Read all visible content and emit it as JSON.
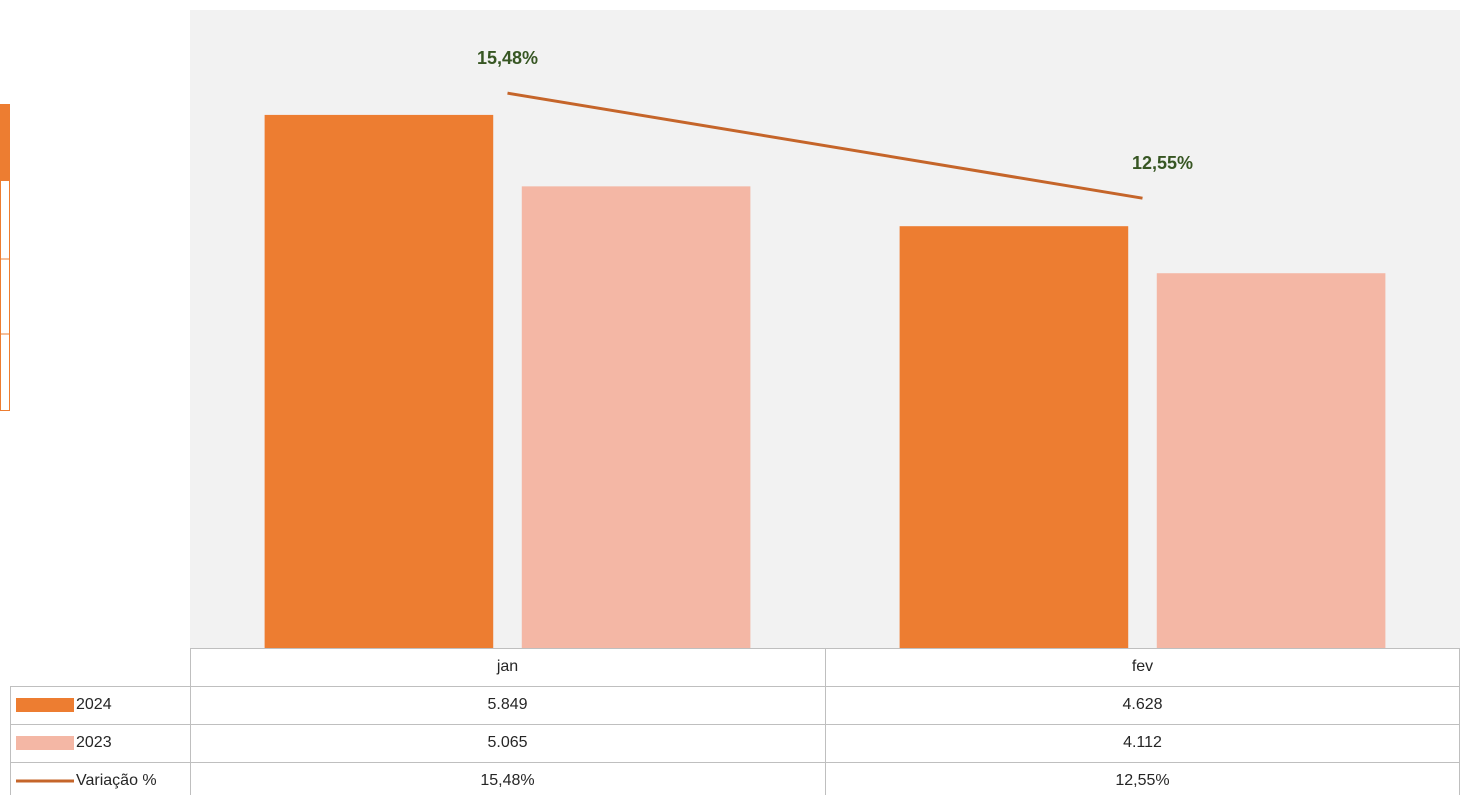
{
  "chart_data": {
    "type": "bar",
    "categories": [
      "jan",
      "fev"
    ],
    "series": [
      {
        "name": "2024",
        "color": "#ed7d31",
        "values": [
          5849,
          4628
        ],
        "value_labels": [
          "5.849",
          "4.628"
        ]
      },
      {
        "name": "2023",
        "color": "#f4b7a5",
        "values": [
          5065,
          4112
        ],
        "value_labels": [
          "5.065",
          "4.112"
        ]
      },
      {
        "name": "Variação %",
        "type": "line",
        "axis": "y2",
        "color": "#c5652a",
        "values": [
          15.48,
          12.55
        ],
        "value_labels": [
          "15,48%",
          "12,55%"
        ]
      }
    ],
    "ylim": [
      0,
      7000
    ],
    "y2lim": [
      0,
      17.8
    ]
  }
}
